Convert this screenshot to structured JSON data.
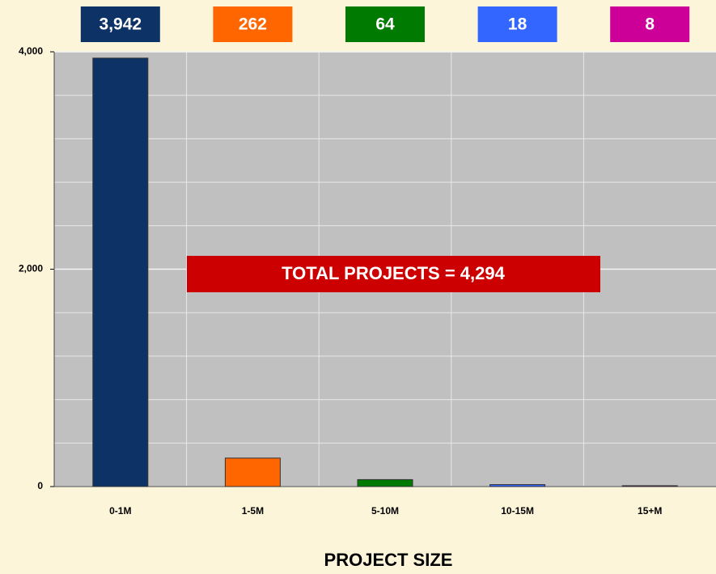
{
  "chart_data": {
    "type": "bar",
    "categories": [
      "0-1M",
      "1-5M",
      "5-10M",
      "10-15M",
      "15+M"
    ],
    "values": [
      3942,
      262,
      64,
      18,
      8
    ],
    "value_labels": [
      "3,942",
      "262",
      "64",
      "18",
      "8"
    ],
    "colors": [
      "#0d3366",
      "#ff6600",
      "#007a00",
      "#3366ff",
      "#cc0099"
    ],
    "ylim": [
      0,
      4000
    ],
    "yticks": [
      0,
      {
        "value": 2000,
        "label": "2,000"
      },
      {
        "value": 4000,
        "label": "4,000"
      }
    ],
    "minor_yticks": [
      400,
      800,
      1200,
      1600,
      2400,
      2800,
      3200,
      3600
    ],
    "grid": true,
    "annotation": "TOTAL PROJECTS = 4,294",
    "xlabel": "PROJECT SIZE"
  }
}
